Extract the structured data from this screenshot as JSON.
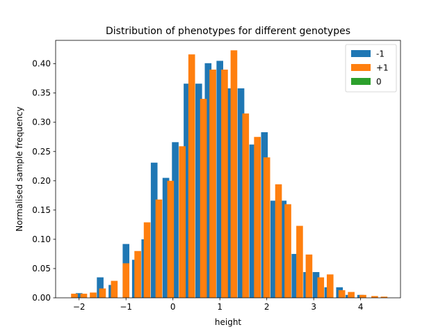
{
  "chart_data": {
    "type": "bar",
    "title": "Distribution of phenotypes for different genotypes",
    "xlabel": "height",
    "ylabel": "Normalised sample frequency",
    "xlim": [
      -2.5,
      4.85
    ],
    "ylim": [
      0,
      0.44
    ],
    "xticks": [
      -2,
      -1,
      0,
      1,
      2,
      3,
      4
    ],
    "xtick_labels": [
      "−2",
      "−1",
      "0",
      "1",
      "2",
      "3",
      "4"
    ],
    "yticks": [
      0.0,
      0.05,
      0.1,
      0.15,
      0.2,
      0.25,
      0.3,
      0.35,
      0.4
    ],
    "ytick_labels": [
      "0.00",
      "0.05",
      "0.10",
      "0.15",
      "0.20",
      "0.25",
      "0.30",
      "0.35",
      "0.40"
    ],
    "grid": false,
    "legend_position": "top-right",
    "bin_width": 0.3,
    "series": [
      {
        "name": "-1",
        "color": "#1f77b4",
        "x": [
          -2.0,
          -1.55,
          -1.3,
          -1.0,
          -0.8,
          -0.6,
          -0.4,
          -0.15,
          0.05,
          0.3,
          0.55,
          0.75,
          1.0,
          1.2,
          1.45,
          1.7,
          1.95,
          2.15,
          2.35,
          2.6,
          2.85,
          3.05,
          3.3,
          3.55,
          3.75,
          4.0
        ],
        "values": [
          0.008,
          0.035,
          0.022,
          0.092,
          0.065,
          0.1,
          0.231,
          0.205,
          0.266,
          0.366,
          0.366,
          0.401,
          0.405,
          0.358,
          0.358,
          0.262,
          0.283,
          0.166,
          0.166,
          0.075,
          0.044,
          0.044,
          0.018,
          0.018,
          0.005,
          0.005
        ]
      },
      {
        "name": "+1",
        "color": "#ff7f0e",
        "x": [
          -2.1,
          -1.9,
          -1.7,
          -1.5,
          -1.25,
          -1.0,
          -0.75,
          -0.55,
          -0.3,
          -0.05,
          0.2,
          0.4,
          0.65,
          0.85,
          1.1,
          1.3,
          1.55,
          1.8,
          2.0,
          2.25,
          2.45,
          2.7,
          2.9,
          3.15,
          3.35,
          3.6,
          3.8,
          4.05,
          4.3,
          4.5
        ],
        "values": [
          0.007,
          0.007,
          0.009,
          0.016,
          0.029,
          0.059,
          0.08,
          0.129,
          0.168,
          0.2,
          0.259,
          0.416,
          0.34,
          0.39,
          0.39,
          0.423,
          0.315,
          0.275,
          0.24,
          0.194,
          0.16,
          0.123,
          0.074,
          0.035,
          0.04,
          0.013,
          0.01,
          0.005,
          0.003,
          0.002
        ]
      },
      {
        "name": "0",
        "color": "#2ca02c",
        "x": [],
        "values": []
      }
    ]
  }
}
